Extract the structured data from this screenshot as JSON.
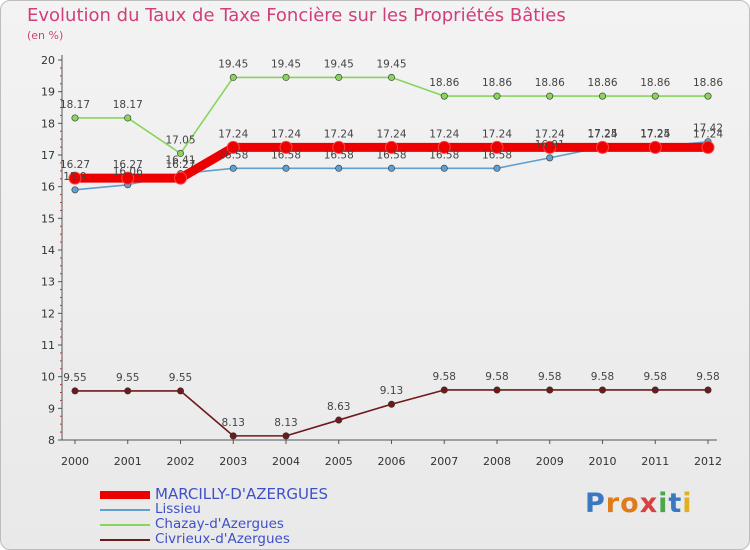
{
  "header": {
    "title": "Evolution du Taux de Taxe Foncière sur les Propriétés Bâties",
    "subtitle": "(en %)"
  },
  "colors": {
    "title": "#cf3f7a",
    "axis": "#555555",
    "legend_text": "#3e50c8",
    "label_text": "#444444"
  },
  "brand": {
    "logo": "Proxiti"
  },
  "chart_data": {
    "type": "line",
    "title": "Evolution du Taux de Taxe Foncière sur les Propriétés Bâties",
    "ylabel": "(en %)",
    "xlabel": "",
    "ylim": [
      8,
      20
    ],
    "yticks": [
      8,
      9,
      10,
      11,
      12,
      13,
      14,
      15,
      16,
      17,
      18,
      19,
      20
    ],
    "categories": [
      "2000",
      "2001",
      "2002",
      "2003",
      "2004",
      "2005",
      "2006",
      "2007",
      "2008",
      "2009",
      "2010",
      "2011",
      "2012"
    ],
    "legend_position": "bottom-left",
    "series": [
      {
        "name": "MARCILLY-D'AZERGUES",
        "color": "#ee0000",
        "emphasis": true,
        "values": [
          16.27,
          16.27,
          16.27,
          17.24,
          17.24,
          17.24,
          17.24,
          17.24,
          17.24,
          17.24,
          17.24,
          17.24,
          17.24
        ],
        "labels": [
          "16.27",
          "16.27",
          "16.27",
          "17.24",
          "17.24",
          "17.24",
          "17.24",
          "17.24",
          "17.24",
          "17.24",
          "17.24",
          "17.24",
          "17.24"
        ]
      },
      {
        "name": "Lissieu",
        "color": "#5fa0d0",
        "values": [
          15.9,
          16.06,
          16.41,
          16.58,
          16.58,
          16.58,
          16.58,
          16.58,
          16.58,
          16.91,
          17.25,
          17.25,
          17.42
        ],
        "labels": [
          "15.9",
          "16.06",
          "16.41",
          "16.58",
          "16.58",
          "16.58",
          "16.58",
          "16.58",
          "16.58",
          "16.91",
          "17.25",
          "17.25",
          "17.42"
        ]
      },
      {
        "name": "Chazay-d'Azergues",
        "color": "#88d45c",
        "values": [
          18.17,
          18.17,
          17.05,
          19.45,
          19.45,
          19.45,
          19.45,
          18.86,
          18.86,
          18.86,
          18.86,
          18.86,
          18.86
        ],
        "labels": [
          "18.17",
          "18.17",
          "17.05",
          "19.45",
          "19.45",
          "19.45",
          "19.45",
          "18.86",
          "18.86",
          "18.86",
          "18.86",
          "18.86",
          "18.86"
        ]
      },
      {
        "name": "Civrieux-d'Azergues",
        "color": "#6e1a1a",
        "values": [
          9.55,
          9.55,
          9.55,
          8.13,
          8.13,
          8.63,
          9.13,
          9.58,
          9.58,
          9.58,
          9.58,
          9.58,
          9.58
        ],
        "labels": [
          "9.55",
          "9.55",
          "9.55",
          "8.13",
          "8.13",
          "8.63",
          "9.13",
          "9.58",
          "9.58",
          "9.58",
          "9.58",
          "9.58",
          "9.58"
        ]
      }
    ]
  }
}
